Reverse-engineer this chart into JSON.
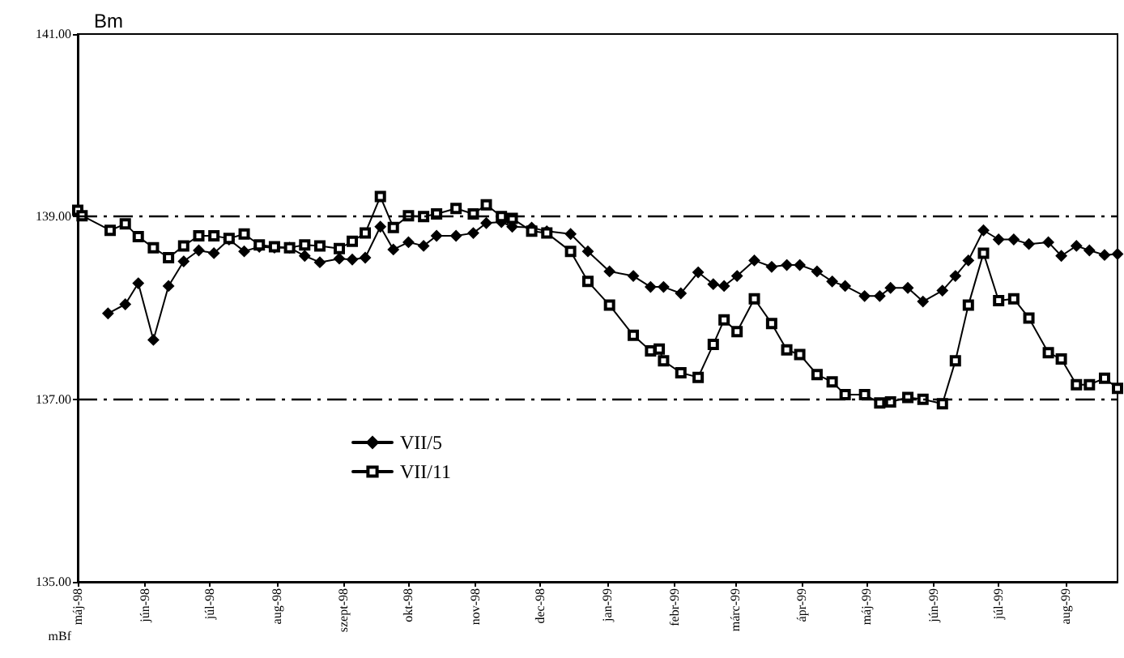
{
  "chart_data": {
    "type": "line",
    "title": "Bm",
    "ylabel": "mBf",
    "xlim": [
      "1998-05-01",
      "1999-08-25"
    ],
    "xticks": [
      {
        "value": "1998-05-01",
        "label": "máj-98"
      },
      {
        "value": "1998-06-01",
        "label": "jún-98"
      },
      {
        "value": "1998-07-01",
        "label": "júl-98"
      },
      {
        "value": "1998-08-01",
        "label": "aug-98"
      },
      {
        "value": "1998-09-01",
        "label": "szept-98"
      },
      {
        "value": "1998-10-01",
        "label": "okt-98"
      },
      {
        "value": "1998-11-01",
        "label": "nov-98"
      },
      {
        "value": "1998-12-01",
        "label": "dec-98"
      },
      {
        "value": "1999-01-01",
        "label": "jan-99"
      },
      {
        "value": "1999-02-01",
        "label": "febr-99"
      },
      {
        "value": "1999-03-01",
        "label": "márc-99"
      },
      {
        "value": "1999-04-01",
        "label": "ápr-99"
      },
      {
        "value": "1999-05-01",
        "label": "máj-99"
      },
      {
        "value": "1999-06-01",
        "label": "jún-99"
      },
      {
        "value": "1999-07-01",
        "label": "júl-99"
      },
      {
        "value": "1999-08-01",
        "label": "aug-99"
      }
    ],
    "ylim": [
      135,
      141
    ],
    "yticks": [
      {
        "value": 135,
        "label": "135.00"
      },
      {
        "value": 137,
        "label": "137.00"
      },
      {
        "value": 139,
        "label": "139.00"
      },
      {
        "value": 141,
        "label": "141.00"
      }
    ],
    "grid": false,
    "legend": "bottom left",
    "line_style": "solid",
    "ref_lines": [
      {
        "axis": "y",
        "value": 139,
        "line_style": "dashed"
      },
      {
        "axis": "y",
        "value": 137,
        "line_style": "dashed"
      }
    ],
    "series": [
      {
        "name": "VII/5",
        "color": "#000000",
        "marker": "diamond",
        "x": [
          "1998-05-15",
          "1998-05-23",
          "1998-05-29",
          "1998-06-05",
          "1998-06-12",
          "1998-06-19",
          "1998-06-26",
          "1998-07-03",
          "1998-07-10",
          "1998-07-17",
          "1998-07-24",
          "1998-07-31",
          "1998-08-07",
          "1998-08-14",
          "1998-08-21",
          "1998-08-30",
          "1998-09-05",
          "1998-09-11",
          "1998-09-18",
          "1998-09-24",
          "1998-10-01",
          "1998-10-08",
          "1998-10-14",
          "1998-10-23",
          "1998-10-31",
          "1998-11-06",
          "1998-11-13",
          "1998-11-18",
          "1998-11-27",
          "1998-12-04",
          "1998-12-15",
          "1998-12-23",
          "1999-01-02",
          "1999-01-13",
          "1999-01-21",
          "1999-01-27",
          "1999-02-04",
          "1999-02-12",
          "1999-02-19",
          "1999-02-24",
          "1999-03-02",
          "1999-03-10",
          "1999-03-18",
          "1999-03-25",
          "1999-03-31",
          "1999-04-08",
          "1999-04-15",
          "1999-04-21",
          "1999-04-30",
          "1999-05-07",
          "1999-05-12",
          "1999-05-20",
          "1999-05-27",
          "1999-06-05",
          "1999-06-11",
          "1999-06-17",
          "1999-06-24",
          "1999-07-01",
          "1999-07-08",
          "1999-07-15",
          "1999-07-24",
          "1999-07-30",
          "1999-08-06",
          "1999-08-12",
          "1999-08-19",
          "1999-08-25"
        ],
        "values": [
          137.94,
          138.04,
          138.27,
          137.65,
          138.24,
          138.51,
          138.63,
          138.6,
          138.75,
          138.62,
          138.67,
          138.66,
          138.66,
          138.57,
          138.5,
          138.54,
          138.53,
          138.55,
          138.89,
          138.64,
          138.72,
          138.68,
          138.79,
          138.79,
          138.82,
          138.93,
          138.94,
          138.89,
          138.88,
          138.84,
          138.81,
          138.62,
          138.4,
          138.35,
          138.23,
          138.23,
          138.16,
          138.39,
          138.26,
          138.24,
          138.35,
          138.52,
          138.45,
          138.47,
          138.47,
          138.4,
          138.29,
          138.24,
          138.13,
          138.13,
          138.22,
          138.22,
          138.07,
          138.19,
          138.35,
          138.52,
          138.85,
          138.75,
          138.75,
          138.7,
          138.72,
          138.57,
          138.68,
          138.63,
          138.58,
          138.59
        ]
      },
      {
        "name": "VII/11",
        "color": "#000000",
        "marker": "square",
        "x": [
          "1998-05-01",
          "1998-05-03",
          "1998-05-16",
          "1998-05-23",
          "1998-05-29",
          "1998-06-05",
          "1998-06-12",
          "1998-06-19",
          "1998-06-26",
          "1998-07-03",
          "1998-07-10",
          "1998-07-17",
          "1998-07-24",
          "1998-07-31",
          "1998-08-07",
          "1998-08-14",
          "1998-08-21",
          "1998-08-30",
          "1998-09-05",
          "1998-09-11",
          "1998-09-18",
          "1998-09-24",
          "1998-10-01",
          "1998-10-08",
          "1998-10-14",
          "1998-10-23",
          "1998-10-31",
          "1998-11-06",
          "1998-11-13",
          "1998-11-18",
          "1998-11-27",
          "1998-12-04",
          "1998-12-15",
          "1998-12-23",
          "1999-01-02",
          "1999-01-13",
          "1999-01-21",
          "1999-01-25",
          "1999-01-27",
          "1999-02-04",
          "1999-02-12",
          "1999-02-19",
          "1999-02-24",
          "1999-03-02",
          "1999-03-10",
          "1999-03-18",
          "1999-03-25",
          "1999-03-31",
          "1999-04-08",
          "1999-04-15",
          "1999-04-21",
          "1999-04-30",
          "1999-05-07",
          "1999-05-12",
          "1999-05-20",
          "1999-05-27",
          "1999-06-05",
          "1999-06-11",
          "1999-06-17",
          "1999-06-24",
          "1999-07-01",
          "1999-07-08",
          "1999-07-15",
          "1999-07-24",
          "1999-07-30",
          "1999-08-06",
          "1999-08-12",
          "1999-08-19",
          "1999-08-25"
        ],
        "values": [
          139.07,
          139.01,
          138.85,
          138.92,
          138.78,
          138.66,
          138.55,
          138.68,
          138.79,
          138.79,
          138.76,
          138.81,
          138.69,
          138.67,
          138.66,
          138.69,
          138.68,
          138.65,
          138.73,
          138.82,
          139.22,
          138.88,
          139.01,
          139.0,
          139.03,
          139.09,
          139.03,
          139.13,
          139.0,
          138.98,
          138.84,
          138.82,
          138.62,
          138.29,
          138.03,
          137.7,
          137.53,
          137.55,
          137.42,
          137.29,
          137.24,
          137.6,
          137.87,
          137.74,
          138.1,
          137.83,
          137.54,
          137.49,
          137.27,
          137.19,
          137.05,
          137.05,
          136.96,
          136.97,
          137.02,
          137.0,
          136.95,
          137.42,
          138.03,
          138.6,
          138.08,
          138.1,
          137.89,
          137.51,
          137.44,
          137.16,
          137.16,
          137.23,
          137.12
        ]
      }
    ]
  }
}
